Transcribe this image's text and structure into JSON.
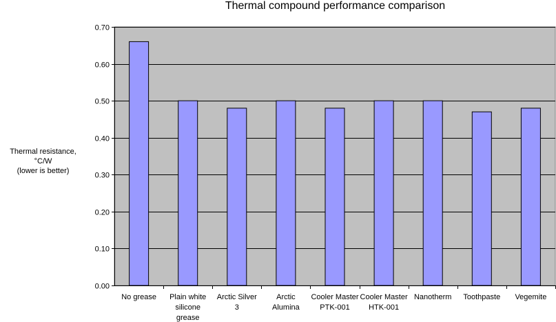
{
  "chart_data": {
    "type": "bar",
    "title": "Thermal compound performance comparison",
    "ylabel_lines": [
      "Thermal resistance, °C/W",
      "(lower is better)"
    ],
    "xlabel": "",
    "categories": [
      [
        "No grease"
      ],
      [
        "Plain white",
        "silicone",
        "grease"
      ],
      [
        "Arctic Silver",
        "3"
      ],
      [
        "Arctic",
        "Alumina"
      ],
      [
        "Cooler Master",
        "PTK-001"
      ],
      [
        "Cooler Master",
        "HTK-001"
      ],
      [
        "Nanotherm"
      ],
      [
        "Toothpaste"
      ],
      [
        "Vegemite"
      ]
    ],
    "values": [
      0.66,
      0.5,
      0.48,
      0.5,
      0.48,
      0.5,
      0.5,
      0.47,
      0.48
    ],
    "ylim": [
      0,
      0.7
    ],
    "yticks": [
      "0.00",
      "0.10",
      "0.20",
      "0.30",
      "0.40",
      "0.50",
      "0.60",
      "0.70"
    ],
    "grid": true,
    "colors": {
      "plot_bg": "#c0c0c0",
      "bar_fill": "#9999ff",
      "bar_stroke": "#000000",
      "grid": "#000000"
    }
  }
}
